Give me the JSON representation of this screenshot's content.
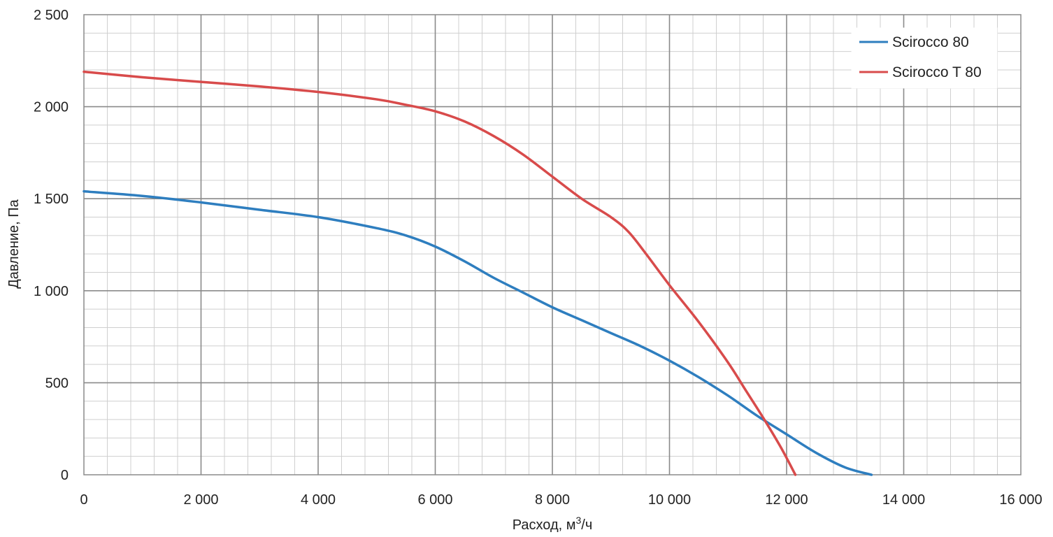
{
  "chart_data": {
    "type": "line",
    "xlabel": "Расход, м",
    "xlabel_sup": "3",
    "xlabel_tail": "/ч",
    "ylabel": "Давление, Па",
    "xlim": [
      0,
      16000
    ],
    "ylim": [
      0,
      2500
    ],
    "x_major_step": 2000,
    "x_minor_step": 400,
    "y_major_step": 500,
    "y_minor_step": 100,
    "x_ticks": [
      0,
      2000,
      4000,
      6000,
      8000,
      10000,
      12000,
      14000,
      16000
    ],
    "x_tick_labels": [
      "0",
      "2 000",
      "4 000",
      "6 000",
      "8 000",
      "10 000",
      "12 000",
      "14 000",
      "16 000"
    ],
    "y_ticks": [
      0,
      500,
      1000,
      1500,
      2000,
      2500
    ],
    "y_tick_labels": [
      "0",
      "500",
      "1 000",
      "1 500",
      "2 000",
      "2 500"
    ],
    "grid": true,
    "legend_position": "top-right",
    "series": [
      {
        "name": "Scirocco 80",
        "color": "#2e7ebf",
        "points": [
          [
            0,
            1540
          ],
          [
            1000,
            1515
          ],
          [
            2000,
            1480
          ],
          [
            3000,
            1440
          ],
          [
            4000,
            1400
          ],
          [
            5000,
            1340
          ],
          [
            5500,
            1300
          ],
          [
            6000,
            1240
          ],
          [
            6500,
            1160
          ],
          [
            7000,
            1070
          ],
          [
            7500,
            990
          ],
          [
            8000,
            910
          ],
          [
            8500,
            840
          ],
          [
            9000,
            770
          ],
          [
            9500,
            700
          ],
          [
            10000,
            620
          ],
          [
            10500,
            530
          ],
          [
            11000,
            430
          ],
          [
            11500,
            320
          ],
          [
            12000,
            220
          ],
          [
            12500,
            120
          ],
          [
            13000,
            40
          ],
          [
            13450,
            0
          ]
        ]
      },
      {
        "name": "Scirocco T 80",
        "color": "#d84b4b",
        "points": [
          [
            0,
            2190
          ],
          [
            1000,
            2160
          ],
          [
            2000,
            2135
          ],
          [
            3000,
            2110
          ],
          [
            4000,
            2080
          ],
          [
            5000,
            2040
          ],
          [
            5500,
            2010
          ],
          [
            6000,
            1975
          ],
          [
            6500,
            1920
          ],
          [
            7000,
            1840
          ],
          [
            7500,
            1740
          ],
          [
            8000,
            1620
          ],
          [
            8500,
            1500
          ],
          [
            9000,
            1400
          ],
          [
            9300,
            1320
          ],
          [
            9600,
            1200
          ],
          [
            10000,
            1030
          ],
          [
            10500,
            830
          ],
          [
            11000,
            610
          ],
          [
            11300,
            460
          ],
          [
            11600,
            310
          ],
          [
            11900,
            150
          ],
          [
            12150,
            0
          ]
        ]
      }
    ]
  }
}
